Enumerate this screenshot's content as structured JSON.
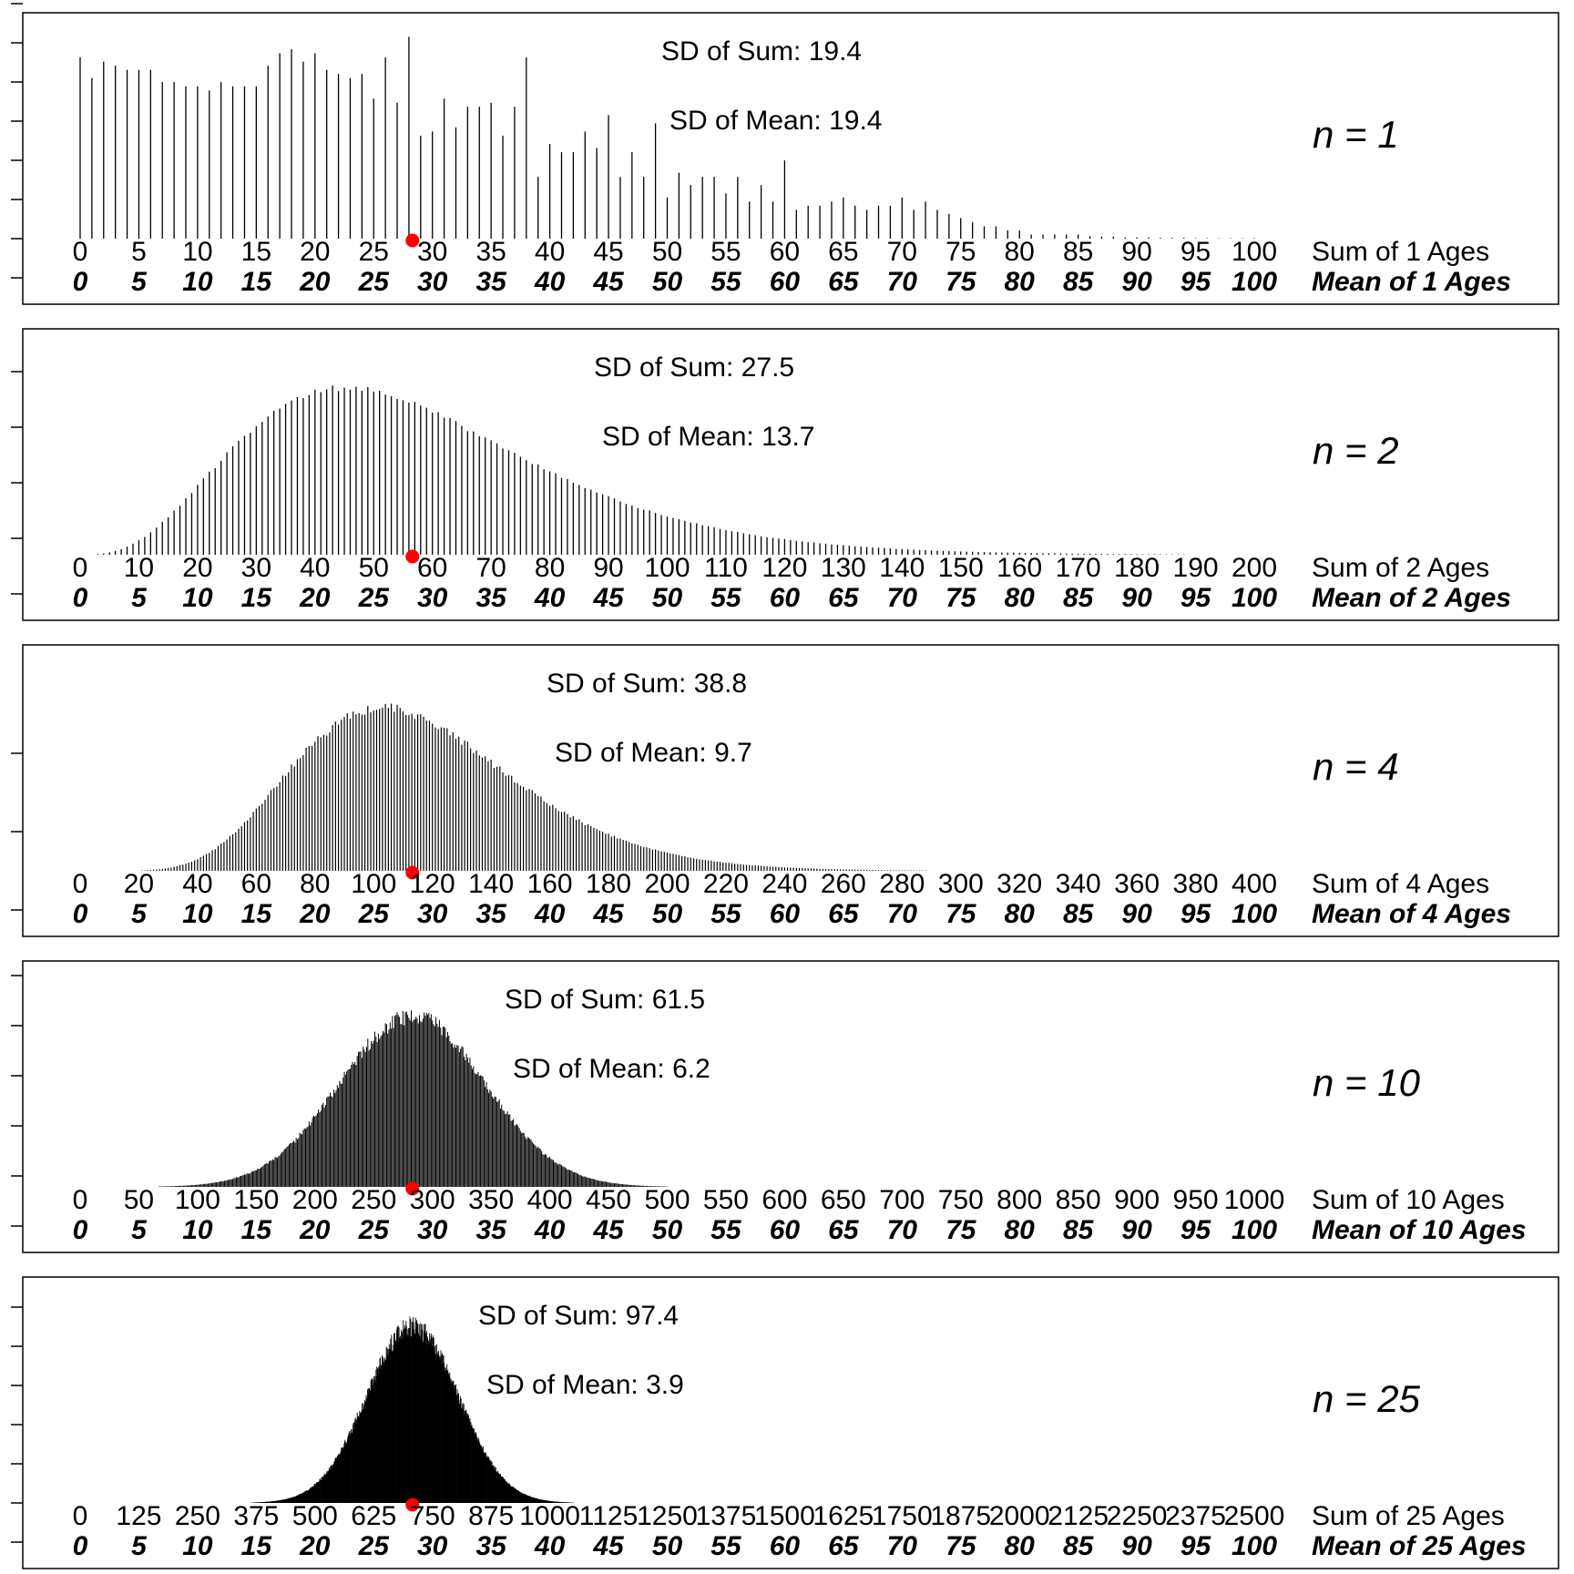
{
  "colors": {
    "bars": "#000000",
    "marker": "#ff0000",
    "frame": "#000000"
  },
  "chart_data": [
    {
      "type": "bar",
      "n": 1,
      "n_label": "n = 1",
      "sd_sum_label": "SD of Sum: 19.4",
      "sd_mean_label": "SD of Mean: 19.4",
      "sum_axis_label": "Sum of 1 Ages",
      "mean_axis_label": "Mean of 1  Ages",
      "sum_ticks": [
        "0",
        "5",
        "10",
        "15",
        "20",
        "25",
        "30",
        "35",
        "40",
        "45",
        "50",
        "55",
        "60",
        "65",
        "70",
        "75",
        "80",
        "85",
        "90",
        "95",
        "100"
      ],
      "mean_ticks": [
        "0",
        "5",
        "10",
        "15",
        "20",
        "25",
        "30",
        "35",
        "40",
        "45",
        "50",
        "55",
        "60",
        "65",
        "70",
        "75",
        "80",
        "85",
        "90",
        "95",
        "100"
      ],
      "xlim": [
        0,
        100
      ],
      "marker_mean_age": 28.3,
      "mean_age": 28.3,
      "sd_of_sum": 19.4,
      "sd_of_mean": 19.4,
      "y_ticks": 8,
      "ymax": 46,
      "values": [
        44,
        39,
        43,
        42,
        41,
        41,
        41,
        38,
        38,
        37,
        37,
        36,
        38,
        37,
        37,
        37,
        42,
        45,
        46,
        43,
        45,
        41,
        40,
        39,
        40,
        34,
        44,
        33,
        49,
        25,
        26,
        34,
        27,
        32,
        32,
        33,
        25,
        32,
        44,
        15,
        23,
        21,
        21,
        26,
        22,
        30,
        15,
        21,
        15,
        28,
        10,
        16,
        13,
        15,
        15,
        11,
        15,
        9,
        13,
        9,
        19,
        7,
        8,
        8,
        9,
        10,
        8,
        7,
        8,
        8,
        10,
        7,
        9,
        7,
        6,
        5,
        4,
        3,
        3,
        2,
        2,
        1,
        1,
        1,
        1,
        1,
        0.6,
        0.5,
        0.5,
        0.3,
        0.3,
        0.3,
        0.2,
        0.2,
        0.2,
        0.1,
        0.1,
        0.1,
        0.1,
        0.1,
        0.1
      ]
    },
    {
      "type": "bar",
      "n": 2,
      "n_label": "n = 2",
      "sd_sum_label": "SD of Sum: 27.5",
      "sd_mean_label": "SD of Mean: 13.7",
      "sum_axis_label": "Sum of 2 Ages",
      "mean_axis_label": "Mean of 2  Ages",
      "sum_ticks": [
        "0",
        "10",
        "20",
        "30",
        "40",
        "50",
        "60",
        "70",
        "80",
        "90",
        "100",
        "110",
        "120",
        "130",
        "140",
        "150",
        "160",
        "170",
        "180",
        "190",
        "200"
      ],
      "mean_ticks": [
        "0",
        "5",
        "10",
        "15",
        "20",
        "25",
        "30",
        "35",
        "40",
        "45",
        "50",
        "55",
        "60",
        "65",
        "70",
        "75",
        "80",
        "85",
        "90",
        "95",
        "100"
      ],
      "xlim": [
        0,
        100
      ],
      "marker_mean_age": 28.3,
      "mean_age": 28.3,
      "sd_of_sum": 27.5,
      "sd_of_mean": 13.7,
      "y_ticks": 6,
      "ymax": 28
    },
    {
      "type": "bar",
      "n": 4,
      "n_label": "n = 4",
      "sd_sum_label": "SD of Sum: 38.8",
      "sd_mean_label": "SD of Mean: 9.7",
      "sum_axis_label": "Sum of 4 Ages",
      "mean_axis_label": "Mean of 4  Ages",
      "sum_ticks": [
        "0",
        "20",
        "40",
        "60",
        "80",
        "100",
        "120",
        "140",
        "160",
        "180",
        "200",
        "220",
        "240",
        "260",
        "280",
        "300",
        "320",
        "340",
        "360",
        "380",
        "400"
      ],
      "mean_ticks": [
        "0",
        "5",
        "10",
        "15",
        "20",
        "25",
        "30",
        "35",
        "40",
        "45",
        "50",
        "55",
        "60",
        "65",
        "70",
        "75",
        "80",
        "85",
        "90",
        "95",
        "100"
      ],
      "xlim": [
        0,
        100
      ],
      "marker_mean_age": 28.3,
      "mean_age": 28.3,
      "sd_of_sum": 38.8,
      "sd_of_mean": 9.7,
      "y_ticks": 3,
      "ymax": 22
    },
    {
      "type": "bar",
      "n": 10,
      "n_label": "n = 10",
      "sd_sum_label": "SD of Sum: 61.5",
      "sd_mean_label": "SD of Mean: 6.2",
      "sum_axis_label": "Sum of 10 Ages",
      "mean_axis_label": "Mean of 10  Ages",
      "sum_ticks": [
        "0",
        "50",
        "100",
        "150",
        "200",
        "250",
        "300",
        "350",
        "400",
        "450",
        "500",
        "550",
        "600",
        "650",
        "700",
        "750",
        "800",
        "850",
        "900",
        "950",
        "1000"
      ],
      "mean_ticks": [
        "0",
        "5",
        "10",
        "15",
        "20",
        "25",
        "30",
        "35",
        "40",
        "45",
        "50",
        "55",
        "60",
        "65",
        "70",
        "75",
        "80",
        "85",
        "90",
        "95",
        "100"
      ],
      "xlim": [
        0,
        100
      ],
      "marker_mean_age": 28.3,
      "mean_age": 28.3,
      "sd_of_sum": 61.5,
      "sd_of_mean": 6.2,
      "y_ticks": 6,
      "ymax": 24
    },
    {
      "type": "bar",
      "n": 25,
      "n_label": "n = 25",
      "sd_sum_label": "SD of Sum: 97.4",
      "sd_mean_label": "SD of Mean: 3.9",
      "sum_axis_label": "Sum of 25 Ages",
      "mean_axis_label": "Mean of 25  Ages",
      "sum_ticks": [
        "0",
        "125",
        "250",
        "375",
        "500",
        "625",
        "750",
        "875",
        "1000",
        "1125",
        "1250",
        "1375",
        "1500",
        "1625",
        "1750",
        "1875",
        "2000",
        "2125",
        "2250",
        "2375",
        "2500"
      ],
      "mean_ticks": [
        "0",
        "5",
        "10",
        "15",
        "20",
        "25",
        "30",
        "35",
        "40",
        "45",
        "50",
        "55",
        "60",
        "65",
        "70",
        "75",
        "80",
        "85",
        "90",
        "95",
        "100"
      ],
      "xlim": [
        0,
        100
      ],
      "marker_mean_age": 28.3,
      "mean_age": 28.3,
      "sd_of_sum": 97.4,
      "sd_of_mean": 3.9,
      "y_ticks": 7,
      "ymax": 22
    }
  ]
}
